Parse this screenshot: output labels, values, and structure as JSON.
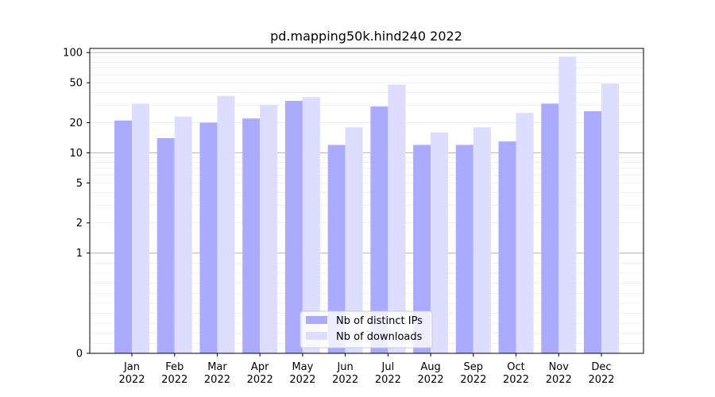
{
  "chart_data": {
    "type": "bar",
    "title": "pd.mapping50k.hind240 2022",
    "xlabel": "",
    "ylabel": "",
    "categories": [
      [
        "Jan",
        "2022"
      ],
      [
        "Feb",
        "2022"
      ],
      [
        "Mar",
        "2022"
      ],
      [
        "Apr",
        "2022"
      ],
      [
        "May",
        "2022"
      ],
      [
        "Jun",
        "2022"
      ],
      [
        "Jul",
        "2022"
      ],
      [
        "Aug",
        "2022"
      ],
      [
        "Sep",
        "2022"
      ],
      [
        "Oct",
        "2022"
      ],
      [
        "Nov",
        "2022"
      ],
      [
        "Dec",
        "2022"
      ]
    ],
    "series": [
      {
        "name": "Nb of distinct IPs",
        "color": "#aaaaff",
        "values": [
          21,
          14,
          20,
          22,
          33,
          12,
          29,
          12,
          12,
          13,
          31,
          26
        ]
      },
      {
        "name": "Nb of downloads",
        "color": "#ddddff",
        "values": [
          31,
          23,
          37,
          30,
          36,
          18,
          48,
          16,
          18,
          25,
          91,
          49
        ]
      }
    ],
    "y_scale": "symlog",
    "ylim": [
      0,
      110
    ],
    "y_ticks": [
      0,
      1,
      2,
      5,
      10,
      20,
      50,
      100
    ],
    "grid": true,
    "legend_position": "bottom-center"
  }
}
